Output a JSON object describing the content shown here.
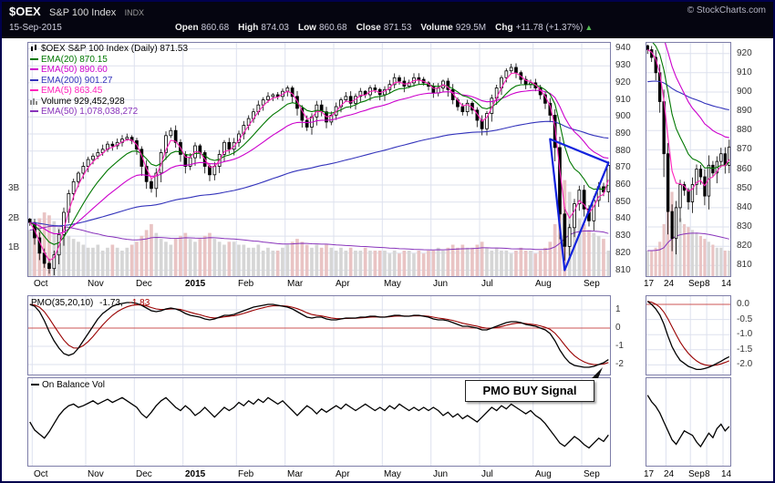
{
  "header": {
    "symbol": "$OEX",
    "name": "S&P 100 Index",
    "exchange": "INDX",
    "copyright": "© StockCharts.com",
    "date": "15-Sep-2015",
    "quote": [
      {
        "label": "Open",
        "value": "860.68"
      },
      {
        "label": "High",
        "value": "874.03"
      },
      {
        "label": "Low",
        "value": "860.68"
      },
      {
        "label": "Close",
        "value": "871.53"
      },
      {
        "label": "Volume",
        "value": "929.5M"
      },
      {
        "label": "Chg",
        "value": "+11.78 (+1.37%)"
      }
    ],
    "chg_arrow": "▲"
  },
  "colors": {
    "grid": "#dde1ee",
    "panel_border": "#7d7da8",
    "candle": "#000000",
    "up_fill": "#ffffff",
    "down_fill": "#000000",
    "vol_up": "#d6d6d6",
    "vol_down": "#e9c4c4",
    "vol_ema": "#8833bb",
    "pmo": "#000000",
    "pmo_signal": "#990000",
    "zero_line": "#cc5555",
    "annotation": "#1122dd",
    "obv": "#000000"
  },
  "main_legend": [
    {
      "text": "$OEX S&P 100 Index (Daily) 871.53",
      "color": "#000000",
      "icon": "candles"
    },
    {
      "text": "EMA(20) 870.15",
      "color": "#007700",
      "icon": "line"
    },
    {
      "text": "EMA(50) 890.60",
      "color": "#cc00cc",
      "icon": "line"
    },
    {
      "text": "EMA(200) 901.27",
      "color": "#3333bb",
      "icon": "line"
    },
    {
      "text": "EMA(5) 863.45",
      "color": "#ff22bb",
      "icon": "line"
    },
    {
      "text": "Volume 929,452,928",
      "color": "#000000",
      "icon": "bars"
    },
    {
      "text": "EMA(50) 1,078,038,272",
      "color": "#8833bb",
      "icon": "line"
    }
  ],
  "pmo_legend": {
    "name": "PMO(35,20,10)",
    "value_black": "-1.73,",
    "value_red": "-1.83"
  },
  "obv_label": "On Balance Vol",
  "buy_signal_label": "PMO BUY Signal",
  "chart_data": [
    {
      "id": "main",
      "type": "candlestick",
      "title": "$OEX S&P 100 Index (Daily) 871.53",
      "ylim": [
        806,
        944
      ],
      "y_ticks": [
        940,
        930,
        920,
        910,
        900,
        890,
        880,
        870,
        860,
        850,
        840,
        830,
        820,
        810
      ],
      "vol_ticks": [
        {
          "label": "3B",
          "v": 3
        },
        {
          "label": "2B",
          "v": 2
        },
        {
          "label": "1B",
          "v": 1
        }
      ],
      "x_ticks": [
        {
          "label": "Oct",
          "i": 1
        },
        {
          "label": "Nov",
          "i": 12
        },
        {
          "label": "Dec",
          "i": 22
        },
        {
          "label": "2015",
          "i": 32,
          "year": true
        },
        {
          "label": "Feb",
          "i": 43
        },
        {
          "label": "Mar",
          "i": 53
        },
        {
          "label": "Apr",
          "i": 63
        },
        {
          "label": "May",
          "i": 73
        },
        {
          "label": "Jun",
          "i": 83
        },
        {
          "label": "Jul",
          "i": 93
        },
        {
          "label": "Aug",
          "i": 104
        },
        {
          "label": "Sep",
          "i": 114
        }
      ],
      "closes": [
        838,
        829,
        820,
        814,
        811,
        819,
        831,
        844,
        855,
        862,
        867,
        871,
        875,
        877,
        879,
        881,
        884,
        883,
        885,
        887,
        888,
        886,
        881,
        871,
        862,
        858,
        867,
        879,
        889,
        892,
        885,
        878,
        871,
        876,
        883,
        879,
        871,
        866,
        871,
        878,
        885,
        881,
        885,
        890,
        895,
        899,
        903,
        907,
        910,
        912,
        913,
        912,
        915,
        917,
        912,
        905,
        898,
        894,
        900,
        907,
        903,
        897,
        901,
        906,
        910,
        912,
        908,
        912,
        915,
        913,
        917,
        916,
        913,
        916,
        919,
        923,
        921,
        918,
        920,
        923,
        922,
        920,
        918,
        914,
        917,
        921,
        916,
        910,
        906,
        903,
        908,
        904,
        898,
        893,
        902,
        911,
        917,
        923,
        927,
        929,
        926,
        922,
        919,
        920,
        917,
        913,
        908,
        901,
        882,
        843,
        824,
        835,
        849,
        857,
        846,
        839,
        851,
        859,
        856,
        871.5
      ],
      "volumes": [
        1.6,
        1.8,
        2.0,
        2.2,
        2.1,
        1.9,
        1.7,
        1.5,
        1.4,
        1.3,
        1.2,
        1.1,
        1.0,
        1.0,
        1.1,
        0.9,
        1.0,
        1.1,
        1.0,
        0.9,
        1.0,
        1.1,
        1.2,
        1.4,
        1.6,
        1.8,
        1.5,
        1.3,
        1.2,
        1.1,
        1.3,
        1.4,
        1.5,
        1.3,
        1.2,
        1.3,
        1.4,
        1.5,
        1.3,
        1.2,
        1.1,
        1.2,
        1.2,
        1.1,
        1.1,
        1.0,
        1.0,
        1.1,
        0.9,
        1.0,
        0.9,
        0.9,
        1.0,
        1.1,
        1.2,
        1.3,
        1.2,
        1.1,
        1.0,
        1.1,
        1.0,
        1.1,
        1.0,
        0.9,
        1.0,
        0.9,
        1.0,
        0.9,
        0.9,
        1.0,
        0.9,
        0.9,
        0.9,
        0.9,
        0.8,
        0.9,
        0.8,
        0.9,
        0.9,
        0.8,
        0.9,
        0.8,
        0.9,
        0.9,
        1.0,
        0.9,
        1.0,
        1.1,
        1.0,
        1.1,
        1.0,
        1.0,
        1.1,
        1.2,
        1.0,
        0.9,
        1.0,
        0.9,
        0.9,
        0.8,
        0.9,
        1.0,
        0.9,
        0.9,
        0.8,
        0.9,
        1.0,
        1.2,
        1.8,
        2.6,
        3.3,
        2.9,
        2.4,
        2.0,
        1.8,
        1.6,
        1.5,
        1.4,
        1.3,
        0.9
      ],
      "emas": [
        {
          "name": "EMA(200)",
          "period": 100,
          "color": "#3333bb"
        },
        {
          "name": "EMA(50)",
          "period": 25,
          "color": "#cc00cc"
        },
        {
          "name": "EMA(20)",
          "period": 10,
          "color": "#007700"
        },
        {
          "name": "EMA(5)",
          "period": 3,
          "color": "#ff22bb"
        }
      ],
      "vol_ema_period": 25,
      "wick": 2.2,
      "annotation": {
        "type": "triangle",
        "color": "#1122dd",
        "points": [
          [
            107,
            887
          ],
          [
            119,
            873
          ],
          [
            110,
            810
          ]
        ]
      }
    },
    {
      "id": "price_inset",
      "type": "candlestick",
      "ylim": [
        804,
        926
      ],
      "y_ticks": [
        920,
        910,
        900,
        890,
        880,
        870,
        860,
        850,
        840,
        830,
        820,
        810
      ],
      "x_ticks": [
        {
          "label": "17",
          "i": 0
        },
        {
          "label": "24",
          "i": 5
        },
        {
          "label": "Sep",
          "i": 11
        },
        {
          "label": "8",
          "i": 15
        },
        {
          "label": "14",
          "i": 19
        }
      ],
      "closes": [
        922,
        918,
        910,
        895,
        868,
        838,
        824,
        840,
        852,
        849,
        843,
        852,
        860,
        856,
        846,
        862,
        858,
        864,
        868,
        862,
        871.5
      ],
      "volumes": [
        0.9,
        0.9,
        1.0,
        1.2,
        1.8,
        3.3,
        2.9,
        2.4,
        2.0,
        1.8,
        1.7,
        1.6,
        1.5,
        1.4,
        1.3,
        1.2,
        1.1,
        1.0,
        1.0,
        0.9,
        0.9
      ],
      "emas": [
        {
          "name": "EMA(200)",
          "period": 100,
          "seed": 905,
          "color": "#3333bb"
        },
        {
          "name": "EMA(50)",
          "period": 25,
          "seed": 941,
          "color": "#cc00cc"
        },
        {
          "name": "EMA(20)",
          "period": 12,
          "seed": 929,
          "color": "#007700"
        },
        {
          "name": "EMA(5)",
          "period": 5,
          "color": "#ff22bb"
        }
      ],
      "vol_ema_period": 25,
      "wick": 3.0
    },
    {
      "id": "pmo",
      "type": "line",
      "label": "PMO(35,20,10)",
      "last_values": [
        -1.73,
        -1.83
      ],
      "ylim": [
        -2.6,
        1.8
      ],
      "y_ticks": [
        {
          "label": "1",
          "v": 1
        },
        {
          "label": "0",
          "v": 0,
          "zero": true
        },
        {
          "label": "-1",
          "v": -1
        },
        {
          "label": "-2",
          "v": -2
        }
      ],
      "signal_period": 5,
      "values": [
        1.3,
        1.2,
        0.9,
        0.4,
        -0.2,
        -0.7,
        -1.1,
        -1.4,
        -1.5,
        -1.4,
        -1.1,
        -0.7,
        -0.3,
        0.1,
        0.5,
        0.8,
        1.0,
        1.2,
        1.3,
        1.35,
        1.4,
        1.4,
        1.35,
        1.25,
        1.1,
        0.95,
        0.9,
        0.95,
        1.05,
        1.1,
        1.05,
        0.95,
        0.8,
        0.7,
        0.65,
        0.6,
        0.5,
        0.45,
        0.5,
        0.6,
        0.7,
        0.7,
        0.75,
        0.85,
        0.95,
        1.05,
        1.15,
        1.2,
        1.25,
        1.3,
        1.3,
        1.25,
        1.2,
        1.15,
        1.05,
        0.9,
        0.75,
        0.6,
        0.55,
        0.6,
        0.6,
        0.5,
        0.45,
        0.45,
        0.5,
        0.55,
        0.55,
        0.55,
        0.6,
        0.6,
        0.65,
        0.65,
        0.6,
        0.6,
        0.65,
        0.7,
        0.7,
        0.65,
        0.65,
        0.7,
        0.7,
        0.65,
        0.6,
        0.5,
        0.45,
        0.45,
        0.4,
        0.3,
        0.2,
        0.1,
        0.1,
        0.05,
        0.0,
        -0.1,
        -0.1,
        0.0,
        0.1,
        0.2,
        0.3,
        0.35,
        0.35,
        0.3,
        0.2,
        0.15,
        0.1,
        0.0,
        -0.1,
        -0.3,
        -0.7,
        -1.2,
        -1.6,
        -1.9,
        -2.05,
        -2.1,
        -2.15,
        -2.15,
        -2.1,
        -2.0,
        -1.9,
        -1.73
      ]
    },
    {
      "id": "pmo_inset",
      "type": "line",
      "ylim": [
        -2.35,
        0.3
      ],
      "y_ticks": [
        {
          "label": "0.0",
          "v": 0,
          "zero": true
        },
        {
          "label": "-0.5",
          "v": -0.5
        },
        {
          "label": "-1.0",
          "v": -1.0
        },
        {
          "label": "-1.5",
          "v": -1.5
        },
        {
          "label": "-2.0",
          "v": -2.0
        }
      ],
      "signal_period": 6,
      "values": [
        0.1,
        0.0,
        -0.15,
        -0.35,
        -0.65,
        -1.05,
        -1.4,
        -1.65,
        -1.85,
        -1.95,
        -2.05,
        -2.1,
        -2.15,
        -2.15,
        -2.12,
        -2.08,
        -2.02,
        -1.95,
        -1.88,
        -1.8,
        -1.73
      ]
    },
    {
      "id": "obv",
      "type": "line",
      "label": "On Balance Vol",
      "ylim": [
        -15,
        95
      ],
      "values": [
        40,
        30,
        25,
        20,
        28,
        38,
        48,
        55,
        60,
        62,
        58,
        60,
        63,
        66,
        62,
        65,
        68,
        64,
        67,
        70,
        66,
        62,
        58,
        50,
        45,
        52,
        60,
        66,
        70,
        64,
        58,
        54,
        60,
        55,
        48,
        52,
        58,
        52,
        46,
        52,
        58,
        54,
        58,
        64,
        60,
        66,
        62,
        68,
        64,
        70,
        66,
        62,
        66,
        60,
        54,
        48,
        54,
        60,
        56,
        50,
        56,
        52,
        56,
        60,
        56,
        62,
        58,
        54,
        58,
        62,
        58,
        54,
        58,
        54,
        60,
        56,
        62,
        58,
        54,
        58,
        54,
        58,
        54,
        58,
        54,
        48,
        52,
        46,
        50,
        44,
        48,
        44,
        40,
        46,
        52,
        58,
        54,
        60,
        56,
        62,
        58,
        54,
        50,
        54,
        48,
        44,
        38,
        30,
        22,
        14,
        10,
        16,
        22,
        18,
        12,
        8,
        14,
        20,
        16,
        24
      ]
    },
    {
      "id": "obv_inset",
      "type": "line",
      "ylim": [
        -10,
        70
      ],
      "values": [
        54,
        48,
        44,
        38,
        30,
        22,
        14,
        10,
        16,
        22,
        20,
        18,
        12,
        8,
        14,
        20,
        16,
        24,
        28,
        22,
        26
      ]
    }
  ]
}
